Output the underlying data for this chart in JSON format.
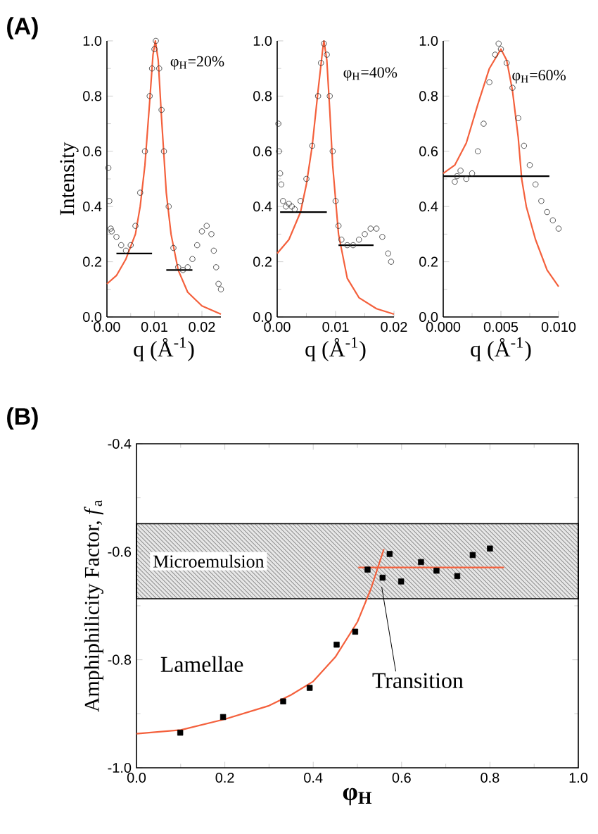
{
  "chart_data": [
    {
      "type": "scatter",
      "title": "(A)",
      "ylabel": "Intensity",
      "xlabel": "q (Å$^{-1}$)",
      "xlim": [
        0,
        0.024
      ],
      "ylim": [
        0,
        1
      ],
      "xticks": [
        {
          "value": 0,
          "label": "0.00"
        },
        0.01,
        0.02
      ],
      "yticks": [
        {
          "value": 0,
          "label": "0.0"
        },
        0.2,
        0.4,
        0.6,
        0.8,
        {
          "value": 1,
          "label": "1.0"
        }
      ],
      "annotations": [
        "φ$_{H}$=20%"
      ],
      "series": [
        {
          "marker": "circle",
          "color": "#2b2b2b",
          "x": [
            0.0003,
            0.0005,
            0.0008,
            0.001,
            0.002,
            0.003,
            0.004,
            0.005,
            0.006,
            0.007,
            0.008,
            0.009,
            0.0095,
            0.01,
            0.0103,
            0.011,
            0.0115,
            0.012,
            0.013,
            0.014,
            0.015,
            0.016,
            0.017,
            0.018,
            0.019,
            0.02,
            0.021,
            0.022,
            0.0225,
            0.023,
            0.0235,
            0.024
          ],
          "values": [
            0.54,
            0.42,
            0.32,
            0.31,
            0.29,
            0.26,
            0.24,
            0.26,
            0.33,
            0.45,
            0.6,
            0.8,
            0.9,
            0.97,
            1.0,
            0.9,
            0.75,
            0.6,
            0.4,
            0.25,
            0.18,
            0.17,
            0.18,
            0.21,
            0.26,
            0.31,
            0.33,
            0.3,
            0.24,
            0.18,
            0.12,
            0.1
          ]
        },
        {
          "type": "line",
          "color": "#f4603c",
          "x": [
            0,
            0.002,
            0.004,
            0.006,
            0.007,
            0.008,
            0.009,
            0.0097,
            0.0102,
            0.0108,
            0.0115,
            0.0125,
            0.0135,
            0.015,
            0.017,
            0.02,
            0.024
          ],
          "values": [
            0.12,
            0.15,
            0.21,
            0.3,
            0.4,
            0.55,
            0.78,
            0.95,
            1.0,
            0.93,
            0.72,
            0.45,
            0.3,
            0.17,
            0.09,
            0.04,
            0.01
          ]
        },
        {
          "type": "line",
          "color": "#000000",
          "x": [
            0.002,
            0.0095
          ],
          "values": [
            0.23,
            0.23
          ]
        },
        {
          "type": "line",
          "color": "#000000",
          "x": [
            0.0125,
            0.018
          ],
          "values": [
            0.17,
            0.17
          ]
        }
      ]
    },
    {
      "type": "scatter",
      "xlabel": "q (Å$^{-1}$)",
      "xlim": [
        0,
        0.02
      ],
      "ylim": [
        0,
        1
      ],
      "xticks": [
        {
          "value": 0,
          "label": "0.00"
        },
        0.01,
        0.02
      ],
      "yticks": [
        {
          "value": 0,
          "label": "0.0"
        },
        0.2,
        0.4,
        0.6,
        0.8,
        {
          "value": 1,
          "label": "1.0"
        }
      ],
      "annotations": [
        "φ$_{H}$=40%"
      ],
      "series": [
        {
          "marker": "circle",
          "color": "#2b2b2b",
          "x": [
            0.0002,
            0.0003,
            0.0005,
            0.0007,
            0.001,
            0.0015,
            0.002,
            0.0025,
            0.003,
            0.004,
            0.005,
            0.006,
            0.007,
            0.0075,
            0.008,
            0.0085,
            0.009,
            0.0095,
            0.01,
            0.0105,
            0.011,
            0.012,
            0.013,
            0.014,
            0.015,
            0.016,
            0.017,
            0.018,
            0.019,
            0.0195
          ],
          "values": [
            0.7,
            0.6,
            0.52,
            0.48,
            0.42,
            0.4,
            0.41,
            0.4,
            0.39,
            0.42,
            0.5,
            0.62,
            0.8,
            0.92,
            0.99,
            0.95,
            0.8,
            0.6,
            0.42,
            0.33,
            0.28,
            0.26,
            0.26,
            0.28,
            0.3,
            0.32,
            0.32,
            0.29,
            0.23,
            0.2
          ]
        },
        {
          "type": "line",
          "color": "#f4603c",
          "x": [
            0,
            0.002,
            0.004,
            0.005,
            0.006,
            0.007,
            0.0078,
            0.008,
            0.0085,
            0.009,
            0.0095,
            0.0105,
            0.012,
            0.014,
            0.017,
            0.02
          ],
          "values": [
            0.23,
            0.28,
            0.38,
            0.48,
            0.62,
            0.82,
            0.97,
            1.0,
            0.93,
            0.75,
            0.55,
            0.3,
            0.14,
            0.07,
            0.03,
            0.01
          ]
        },
        {
          "type": "line",
          "color": "#000000",
          "x": [
            0.0005,
            0.0085
          ],
          "values": [
            0.38,
            0.38
          ]
        },
        {
          "type": "line",
          "color": "#000000",
          "x": [
            0.0105,
            0.0165
          ],
          "values": [
            0.26,
            0.26
          ]
        }
      ]
    },
    {
      "type": "scatter",
      "xlabel": "q (Å$^{-1}$)",
      "xlim": [
        0,
        0.01
      ],
      "ylim": [
        0,
        1
      ],
      "xticks": [
        {
          "value": 0,
          "label": "0.000"
        },
        {
          "value": 0.005,
          "label": "0.005"
        },
        {
          "value": 0.01,
          "label": "0.010"
        }
      ],
      "yticks": [
        {
          "value": 0,
          "label": "0.0"
        },
        0.2,
        0.4,
        0.6,
        0.8,
        {
          "value": 1,
          "label": "1.0"
        }
      ],
      "annotations": [
        "φ$_{H}$=60%"
      ],
      "series": [
        {
          "marker": "circle",
          "color": "#2b2b2b",
          "x": [
            0.001,
            0.0012,
            0.0015,
            0.002,
            0.0025,
            0.003,
            0.0035,
            0.004,
            0.0045,
            0.0048,
            0.005,
            0.0055,
            0.006,
            0.0065,
            0.007,
            0.0075,
            0.008,
            0.0085,
            0.009,
            0.0095,
            0.01
          ],
          "values": [
            0.49,
            0.51,
            0.53,
            0.5,
            0.52,
            0.6,
            0.7,
            0.85,
            0.95,
            0.99,
            0.97,
            0.92,
            0.83,
            0.72,
            0.62,
            0.55,
            0.48,
            0.42,
            0.38,
            0.35,
            0.32
          ]
        },
        {
          "type": "line",
          "color": "#f4603c",
          "x": [
            0,
            0.001,
            0.002,
            0.003,
            0.004,
            0.005,
            0.0055,
            0.006,
            0.0065,
            0.0068,
            0.0072,
            0.008,
            0.009,
            0.01
          ],
          "values": [
            0.52,
            0.55,
            0.63,
            0.77,
            0.9,
            0.97,
            0.93,
            0.82,
            0.65,
            0.5,
            0.4,
            0.28,
            0.17,
            0.11
          ]
        },
        {
          "type": "line",
          "color": "#000000",
          "x": [
            0,
            0.0092
          ],
          "values": [
            0.51,
            0.51
          ]
        }
      ]
    },
    {
      "type": "scatter",
      "title": "(B)",
      "ylabel": "Amphiphilicity Factor, *f*$_{a}$",
      "xlabel": "φ$_{H}$",
      "xlim": [
        0,
        1
      ],
      "ylim": [
        -1,
        -0.4
      ],
      "xticks": [
        {
          "value": 0,
          "label": "0.0"
        },
        0.2,
        0.4,
        0.6,
        0.8,
        {
          "value": 1,
          "label": "1.0"
        }
      ],
      "yticks": [
        {
          "value": -1,
          "label": "-1.0"
        },
        -0.8,
        -0.6,
        -0.4
      ],
      "bands": [
        {
          "axis": "y",
          "from": -0.687,
          "to": -0.548,
          "label": "Microemulsion",
          "color": "#e6e6e6"
        }
      ],
      "annotations": [
        "Lamellae",
        {
          "text": "Transition",
          "x": 0.555,
          "y": -0.665
        }
      ],
      "series": [
        {
          "marker": "square",
          "color": "#000000",
          "x": [
            0.099,
            0.196,
            0.332,
            0.392,
            0.453,
            0.495,
            0.523,
            0.557,
            0.573,
            0.599,
            0.644,
            0.679,
            0.726,
            0.761,
            0.8
          ],
          "values": [
            -0.935,
            -0.906,
            -0.877,
            -0.852,
            -0.772,
            -0.748,
            -0.633,
            -0.648,
            -0.604,
            -0.655,
            -0.619,
            -0.635,
            -0.645,
            -0.606,
            -0.594
          ]
        },
        {
          "type": "line",
          "color": "#f4603c",
          "x": [
            0,
            0.1,
            0.2,
            0.3,
            0.35,
            0.4,
            0.45,
            0.5,
            0.53,
            0.56
          ],
          "values": [
            -0.937,
            -0.93,
            -0.91,
            -0.885,
            -0.865,
            -0.84,
            -0.795,
            -0.73,
            -0.67,
            -0.595
          ]
        },
        {
          "type": "line",
          "color": "#f4603c",
          "x": [
            0.502,
            0.832
          ],
          "values": [
            -0.629,
            -0.629
          ]
        }
      ]
    }
  ]
}
